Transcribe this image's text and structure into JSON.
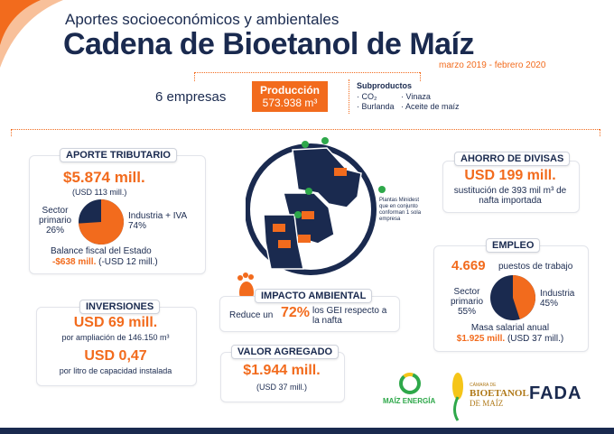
{
  "header": {
    "subtitle": "Aportes socioeconómicos y ambientales",
    "title": "Cadena de Bioetanol de Maíz",
    "period": "marzo 2019 - febrero 2020"
  },
  "summary": {
    "companies": "6 empresas",
    "production_label": "Producción",
    "production_value": "573.938 m³",
    "byproducts_title": "Subproductos",
    "byproducts": [
      "· CO₂",
      "· Vinaza",
      "· Burlanda",
      "· Aceite de maíz"
    ]
  },
  "tributario": {
    "tag": "APORTE TRIBUTARIO",
    "amount": "$5.874 mill.",
    "usd": "(USD 113 mill.)",
    "primary_label": "Sector primario",
    "primary_pct": "26%",
    "industry_label": "Industria + IVA",
    "industry_pct": "74%",
    "balance_label": "Balance fiscal del Estado",
    "balance_value": "-$638 mill.",
    "balance_usd": "(-USD 12 mill.)",
    "pie_fraction": 0.74
  },
  "inversiones": {
    "tag": "INVERSIONES",
    "amount1": "USD 69 mill.",
    "desc1": "por ampliación de 146.150 m³",
    "amount2": "USD 0,47",
    "desc2": "por litro de capacidad instalada"
  },
  "map": {
    "note": "Plantas Minidest que en conjunto conforman 1 sola empresa"
  },
  "impacto": {
    "tag": "IMPACTO AMBIENTAL",
    "pre": "Reduce un",
    "value": "72%",
    "post": "los GEI respecto a la nafta"
  },
  "valor": {
    "tag": "VALOR AGREGADO",
    "amount": "$1.944 mill.",
    "usd": "(USD 37 mill.)"
  },
  "divisas": {
    "tag": "AHORRO DE DIVISAS",
    "amount": "USD 199 mill.",
    "desc": "sustitución de 393 mil m³ de nafta importada"
  },
  "empleo": {
    "tag": "EMPLEO",
    "jobs": "4.669",
    "jobs_label": "puestos de trabajo",
    "primary_label": "Sector primario",
    "primary_pct": "55%",
    "industry_label": "Industria",
    "industry_pct": "45%",
    "salary_label": "Masa salarial anual",
    "salary_value": "$1.925 mill.",
    "salary_usd": "(USD 37 mill.)",
    "pie_fraction": 0.45
  },
  "logos": {
    "maiz_energia": "MAÍZ ENERGÍA",
    "camara_line1": "CÁMARA DE",
    "camara_line2": "BIOETANOL",
    "camara_line3": "DE MAÍZ",
    "fada": "FADA"
  },
  "colors": {
    "navy": "#1a2a4f",
    "orange": "#f26b1d",
    "green": "#2ea84a"
  }
}
